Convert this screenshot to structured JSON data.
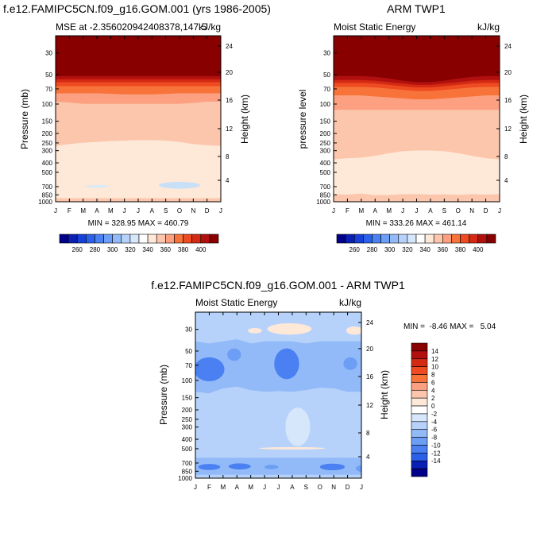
{
  "chart_data": [
    {
      "type": "contour",
      "title": "f.e12.FAMIPC5CN.f09_g16.GOM.001 (yrs 1986-2005)",
      "subtitle_left": "MSE at -2.356020942408378,147.5",
      "subtitle_right": "kJ/kg",
      "ylabel": "Pressure (mb)",
      "y2label": "Height (km)",
      "x_ticks": [
        "J",
        "F",
        "M",
        "A",
        "M",
        "J",
        "J",
        "A",
        "S",
        "O",
        "N",
        "D",
        "J"
      ],
      "y_ticks": [
        30,
        50,
        70,
        100,
        150,
        200,
        250,
        300,
        400,
        500,
        700,
        850,
        1000
      ],
      "y2_ticks": [
        24,
        20,
        16,
        12,
        8,
        4
      ],
      "ylim": [
        1000,
        20
      ],
      "stats": "MIN = 328.95 MAX = 460.79",
      "bands": [
        {
          "top": [
            20,
            20,
            20,
            20,
            20,
            20,
            20,
            20,
            20,
            20,
            20,
            20,
            20
          ],
          "bottom": [
            52,
            52,
            52,
            52,
            52,
            52,
            52,
            52,
            52,
            52,
            52,
            52,
            52
          ],
          "color": "#880000"
        },
        {
          "top": [
            52,
            52,
            52,
            52,
            52,
            52,
            52,
            52,
            52,
            52,
            52,
            52,
            52
          ],
          "bottom": [
            56,
            56,
            56,
            56,
            56,
            56,
            56,
            56,
            56,
            56,
            56,
            56,
            56
          ],
          "color": "#b2100e"
        },
        {
          "top": [
            56,
            56,
            56,
            56,
            56,
            56,
            56,
            56,
            56,
            56,
            56,
            56,
            56
          ],
          "bottom": [
            60,
            60,
            60,
            60,
            60,
            60,
            60,
            60,
            60,
            60,
            60,
            60,
            60
          ],
          "color": "#d42a14"
        },
        {
          "top": [
            60,
            60,
            60,
            60,
            60,
            60,
            60,
            60,
            60,
            60,
            60,
            60,
            60
          ],
          "bottom": [
            66,
            66,
            66,
            66,
            66,
            66,
            66,
            66,
            66,
            66,
            66,
            66,
            66
          ],
          "color": "#ee4b22"
        },
        {
          "top": [
            66,
            66,
            66,
            66,
            66,
            66,
            66,
            66,
            66,
            66,
            66,
            66,
            66
          ],
          "bottom": [
            78,
            78,
            78,
            78,
            79,
            80,
            80,
            80,
            79,
            78,
            78,
            78,
            78
          ],
          "color": "#f8733a"
        },
        {
          "top": [
            78,
            78,
            78,
            78,
            79,
            80,
            80,
            80,
            79,
            78,
            78,
            78,
            78
          ],
          "bottom": [
            95,
            97,
            100,
            100,
            100,
            100,
            100,
            100,
            100,
            100,
            98,
            95,
            95
          ],
          "color": "#fca081"
        },
        {
          "top": [
            95,
            97,
            100,
            100,
            100,
            100,
            100,
            100,
            100,
            100,
            98,
            95,
            95
          ],
          "bottom": [
            270,
            258,
            250,
            245,
            240,
            238,
            235,
            235,
            238,
            245,
            258,
            265,
            270
          ],
          "color": "#fbc6ac"
        },
        {
          "top": [
            270,
            258,
            250,
            245,
            240,
            238,
            235,
            235,
            238,
            245,
            258,
            265,
            270
          ],
          "bottom": [
            925,
            925,
            925,
            925,
            925,
            925,
            925,
            925,
            925,
            925,
            925,
            925,
            925
          ],
          "color": "#fee8d8"
        },
        {
          "top": [
            925,
            925,
            925,
            925,
            925,
            925,
            925,
            925,
            925,
            925,
            925,
            925,
            925
          ],
          "bottom": [
            1000,
            1000,
            1000,
            1000,
            1000,
            1000,
            1000,
            1000,
            1000,
            1000,
            1000,
            1000,
            1000
          ],
          "color": "#fbc6ac"
        }
      ],
      "blobs": [
        {
          "x": 3.0,
          "p": 695,
          "dx": 0.9,
          "dp": 10,
          "color": "#d6eafa"
        },
        {
          "x": 9.0,
          "p": 680,
          "dx": 1.5,
          "dp": 55,
          "color": "#c7e0f7"
        }
      ],
      "colorbar": {
        "labels": [
          260,
          280,
          300,
          320,
          340,
          360,
          380,
          400
        ],
        "colors": [
          "#00008a",
          "#0a1fb5",
          "#1640d8",
          "#2b60e8",
          "#4a80f2",
          "#6c9ef6",
          "#93baf8",
          "#b6d2fa",
          "#d6e6fb",
          "#ffffff",
          "#fee8d8",
          "#fbc6ac",
          "#fca081",
          "#f8733a",
          "#ee4b22",
          "#d42a14",
          "#b2100e",
          "#880000"
        ]
      }
    },
    {
      "type": "contour",
      "title": "ARM TWP1",
      "subtitle_left": "Moist Static Energy",
      "subtitle_right": "kJ/kg",
      "ylabel": "pressure level",
      "y2label": "Height (km)",
      "x_ticks": [
        "J",
        "F",
        "M",
        "A",
        "M",
        "J",
        "J",
        "A",
        "S",
        "O",
        "N",
        "D",
        "J"
      ],
      "y_ticks": [
        30,
        50,
        70,
        100,
        150,
        200,
        250,
        300,
        400,
        500,
        700,
        850,
        1000
      ],
      "y2_ticks": [
        24,
        20,
        16,
        12,
        8,
        4
      ],
      "ylim": [
        1000,
        20
      ],
      "stats": "MIN = 333.26 MAX = 461.14",
      "bands": [
        {
          "top": [
            20,
            20,
            20,
            20,
            20,
            20,
            20,
            20,
            20,
            20,
            20,
            20,
            20
          ],
          "bottom": [
            52,
            52,
            52,
            53,
            55,
            58,
            60,
            60,
            58,
            55,
            53,
            52,
            52
          ],
          "color": "#880000"
        },
        {
          "top": [
            52,
            52,
            52,
            53,
            55,
            58,
            60,
            60,
            58,
            55,
            53,
            52,
            52
          ],
          "bottom": [
            57,
            57,
            57,
            58,
            60,
            62,
            64,
            64,
            62,
            60,
            58,
            57,
            57
          ],
          "color": "#b2100e"
        },
        {
          "top": [
            57,
            57,
            57,
            58,
            60,
            62,
            64,
            64,
            62,
            60,
            58,
            57,
            57
          ],
          "bottom": [
            61,
            61,
            61,
            62,
            64,
            66,
            68,
            68,
            66,
            64,
            62,
            61,
            61
          ],
          "color": "#d42a14"
        },
        {
          "top": [
            61,
            61,
            61,
            62,
            64,
            66,
            68,
            68,
            66,
            64,
            62,
            61,
            61
          ],
          "bottom": [
            67,
            67,
            67,
            68,
            70,
            72,
            74,
            74,
            72,
            70,
            68,
            67,
            67
          ],
          "color": "#ee4b22"
        },
        {
          "top": [
            67,
            67,
            67,
            68,
            70,
            72,
            74,
            74,
            72,
            70,
            68,
            67,
            67
          ],
          "bottom": [
            82,
            82,
            82,
            84,
            86,
            88,
            90,
            90,
            88,
            86,
            84,
            82,
            82
          ],
          "color": "#f8733a"
        },
        {
          "top": [
            82,
            82,
            82,
            84,
            86,
            88,
            90,
            90,
            88,
            86,
            84,
            82,
            82
          ],
          "bottom": [
            115,
            115,
            115,
            115,
            115,
            115,
            115,
            115,
            115,
            115,
            115,
            115,
            115
          ],
          "color": "#fca081"
        },
        {
          "top": [
            115,
            115,
            115,
            115,
            115,
            115,
            115,
            115,
            115,
            115,
            115,
            115,
            115
          ],
          "bottom": [
            370,
            360,
            355,
            340,
            320,
            305,
            300,
            300,
            305,
            320,
            340,
            360,
            370
          ],
          "color": "#fbc6ac"
        },
        {
          "top": [
            370,
            360,
            355,
            340,
            320,
            305,
            300,
            300,
            305,
            320,
            340,
            360,
            370
          ],
          "bottom": [
            840,
            850,
            830,
            860,
            860,
            840,
            840,
            850,
            845,
            855,
            840,
            850,
            840
          ],
          "color": "#fee8d8"
        },
        {
          "top": [
            840,
            850,
            830,
            860,
            860,
            840,
            840,
            850,
            845,
            855,
            840,
            850,
            840
          ],
          "bottom": [
            1000,
            1000,
            1000,
            1000,
            1000,
            1000,
            1000,
            1000,
            1000,
            1000,
            1000,
            1000,
            1000
          ],
          "color": "#fbc6ac"
        }
      ],
      "blobs": [],
      "colorbar": {
        "labels": [
          260,
          280,
          300,
          320,
          340,
          360,
          380,
          400
        ],
        "colors": [
          "#00008a",
          "#0a1fb5",
          "#1640d8",
          "#2b60e8",
          "#4a80f2",
          "#6c9ef6",
          "#93baf8",
          "#b6d2fa",
          "#d6e6fb",
          "#ffffff",
          "#fee8d8",
          "#fbc6ac",
          "#fca081",
          "#f8733a",
          "#ee4b22",
          "#d42a14",
          "#b2100e",
          "#880000"
        ]
      }
    },
    {
      "type": "contour",
      "title": "f.e12.FAMIPC5CN.f09_g16.GOM.001 - ARM TWP1",
      "subtitle_left": "Moist Static Energy",
      "subtitle_right": "kJ/kg",
      "ylabel": "Pressure (mb)",
      "y2label": "Height (km)",
      "x_ticks": [
        "J",
        "F",
        "M",
        "A",
        "M",
        "J",
        "J",
        "A",
        "S",
        "O",
        "N",
        "D",
        "J"
      ],
      "y_ticks": [
        30,
        50,
        70,
        100,
        150,
        200,
        250,
        300,
        400,
        500,
        700,
        850,
        1000
      ],
      "y2_ticks": [
        24,
        20,
        16,
        12,
        8,
        4
      ],
      "ylim": [
        1000,
        20
      ],
      "stats": "MIN =  -8.46 MAX =   5.04",
      "background": "#b6d2fa",
      "bands": [
        {
          "top": [
            20,
            20,
            20,
            20,
            20,
            20,
            20,
            20,
            20,
            20,
            20,
            20,
            20
          ],
          "bottom": [
            27,
            27,
            27,
            27,
            27,
            28,
            28,
            28,
            27,
            27,
            27,
            27,
            27
          ],
          "color": "#b6d2fa"
        },
        {
          "top": [
            40,
            42,
            40,
            38,
            42,
            40,
            40,
            40,
            42,
            40,
            40,
            40,
            40
          ],
          "bottom": [
            130,
            135,
            120,
            115,
            125,
            130,
            128,
            130,
            125,
            118,
            120,
            130,
            130
          ],
          "color": "#93baf8"
        },
        {
          "top": [
            150,
            150,
            150,
            150,
            150,
            150,
            150,
            150,
            150,
            150,
            150,
            150,
            150
          ],
          "bottom": [
            150,
            150,
            150,
            150,
            150,
            150,
            150,
            150,
            150,
            150,
            150,
            150,
            150
          ],
          "color": "#b6d2fa"
        },
        {
          "top": [
            620,
            620,
            620,
            620,
            620,
            620,
            620,
            620,
            620,
            620,
            620,
            620,
            620
          ],
          "bottom": [
            920,
            920,
            920,
            920,
            920,
            920,
            920,
            920,
            920,
            920,
            920,
            920,
            920
          ],
          "color": "#93baf8"
        }
      ],
      "blobs": [
        {
          "x": 1.0,
          "p": 80,
          "dx": 1.1,
          "dp": 22,
          "color": "#4a80f2"
        },
        {
          "x": 2.8,
          "p": 55,
          "dx": 0.5,
          "dp": 8,
          "color": "#6c9ef6"
        },
        {
          "x": 6.6,
          "p": 72,
          "dx": 0.9,
          "dp": 25,
          "color": "#4a80f2"
        },
        {
          "x": 11.2,
          "p": 68,
          "dx": 0.5,
          "dp": 10,
          "color": "#6c9ef6"
        },
        {
          "x": 6.8,
          "p": 30,
          "dx": 1.6,
          "dp": 4,
          "color": "#fee8d8"
        },
        {
          "x": 4.3,
          "p": 31,
          "dx": 0.5,
          "dp": 2,
          "color": "#fee8d8"
        },
        {
          "x": 11.5,
          "p": 31,
          "dx": 0.6,
          "dp": 3,
          "color": "#fee8d8"
        },
        {
          "x": 7.4,
          "p": 330,
          "dx": 0.9,
          "dp": 140,
          "color": "#d6e6fb"
        },
        {
          "x": 7.0,
          "p": 495,
          "dx": 2.4,
          "dp": 14,
          "color": "#fee8d8"
        },
        {
          "x": 1.0,
          "p": 770,
          "dx": 0.8,
          "dp": 55,
          "color": "#4a80f2"
        },
        {
          "x": 3.2,
          "p": 760,
          "dx": 0.8,
          "dp": 55,
          "color": "#4a80f2"
        },
        {
          "x": 5.5,
          "p": 770,
          "dx": 0.5,
          "dp": 40,
          "color": "#6c9ef6"
        },
        {
          "x": 9.9,
          "p": 770,
          "dx": 0.9,
          "dp": 60,
          "color": "#4a80f2"
        },
        {
          "x": 12.0,
          "p": 800,
          "dx": 0.4,
          "dp": 60,
          "color": "#6c9ef6"
        }
      ],
      "colorbar": {
        "labels": [
          14,
          12,
          10,
          8,
          6,
          4,
          2,
          0,
          -2,
          -4,
          -6,
          -8,
          -10,
          -12,
          -14
        ],
        "colors": [
          "#880000",
          "#b2100e",
          "#d42a14",
          "#ee4b22",
          "#f8733a",
          "#fca081",
          "#fbc6ac",
          "#fee8d8",
          "#ffffff",
          "#d6e6fb",
          "#b6d2fa",
          "#93baf8",
          "#6c9ef6",
          "#4a80f2",
          "#2b60e8",
          "#0a1fb5",
          "#00008a"
        ]
      }
    }
  ]
}
